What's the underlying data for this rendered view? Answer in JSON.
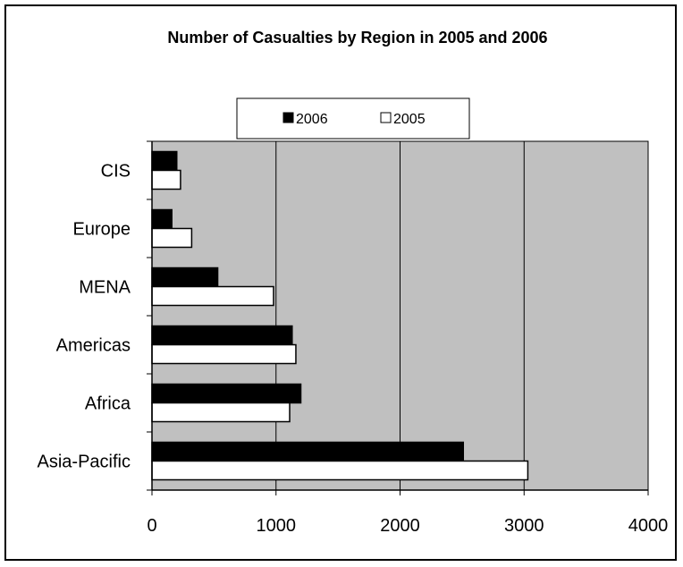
{
  "chart_data": {
    "type": "bar",
    "orientation": "horizontal",
    "title": "Number of Casualties by Region in 2005 and 2006",
    "categories": [
      "CIS",
      "Europe",
      "MENA",
      "Americas",
      "Africa",
      "Asia-Pacific"
    ],
    "series": [
      {
        "name": "2006",
        "values": [
          200,
          160,
          530,
          1130,
          1200,
          2510
        ],
        "color": "#000000"
      },
      {
        "name": "2005",
        "values": [
          230,
          320,
          980,
          1160,
          1110,
          3030
        ],
        "color": "#ffffff"
      }
    ],
    "xlim": [
      0,
      4000
    ],
    "xticks": [
      "0",
      "1000",
      "2000",
      "3000",
      "4000"
    ],
    "plot_background": "#c0c0c0",
    "grid": true,
    "legend_position": "top"
  }
}
